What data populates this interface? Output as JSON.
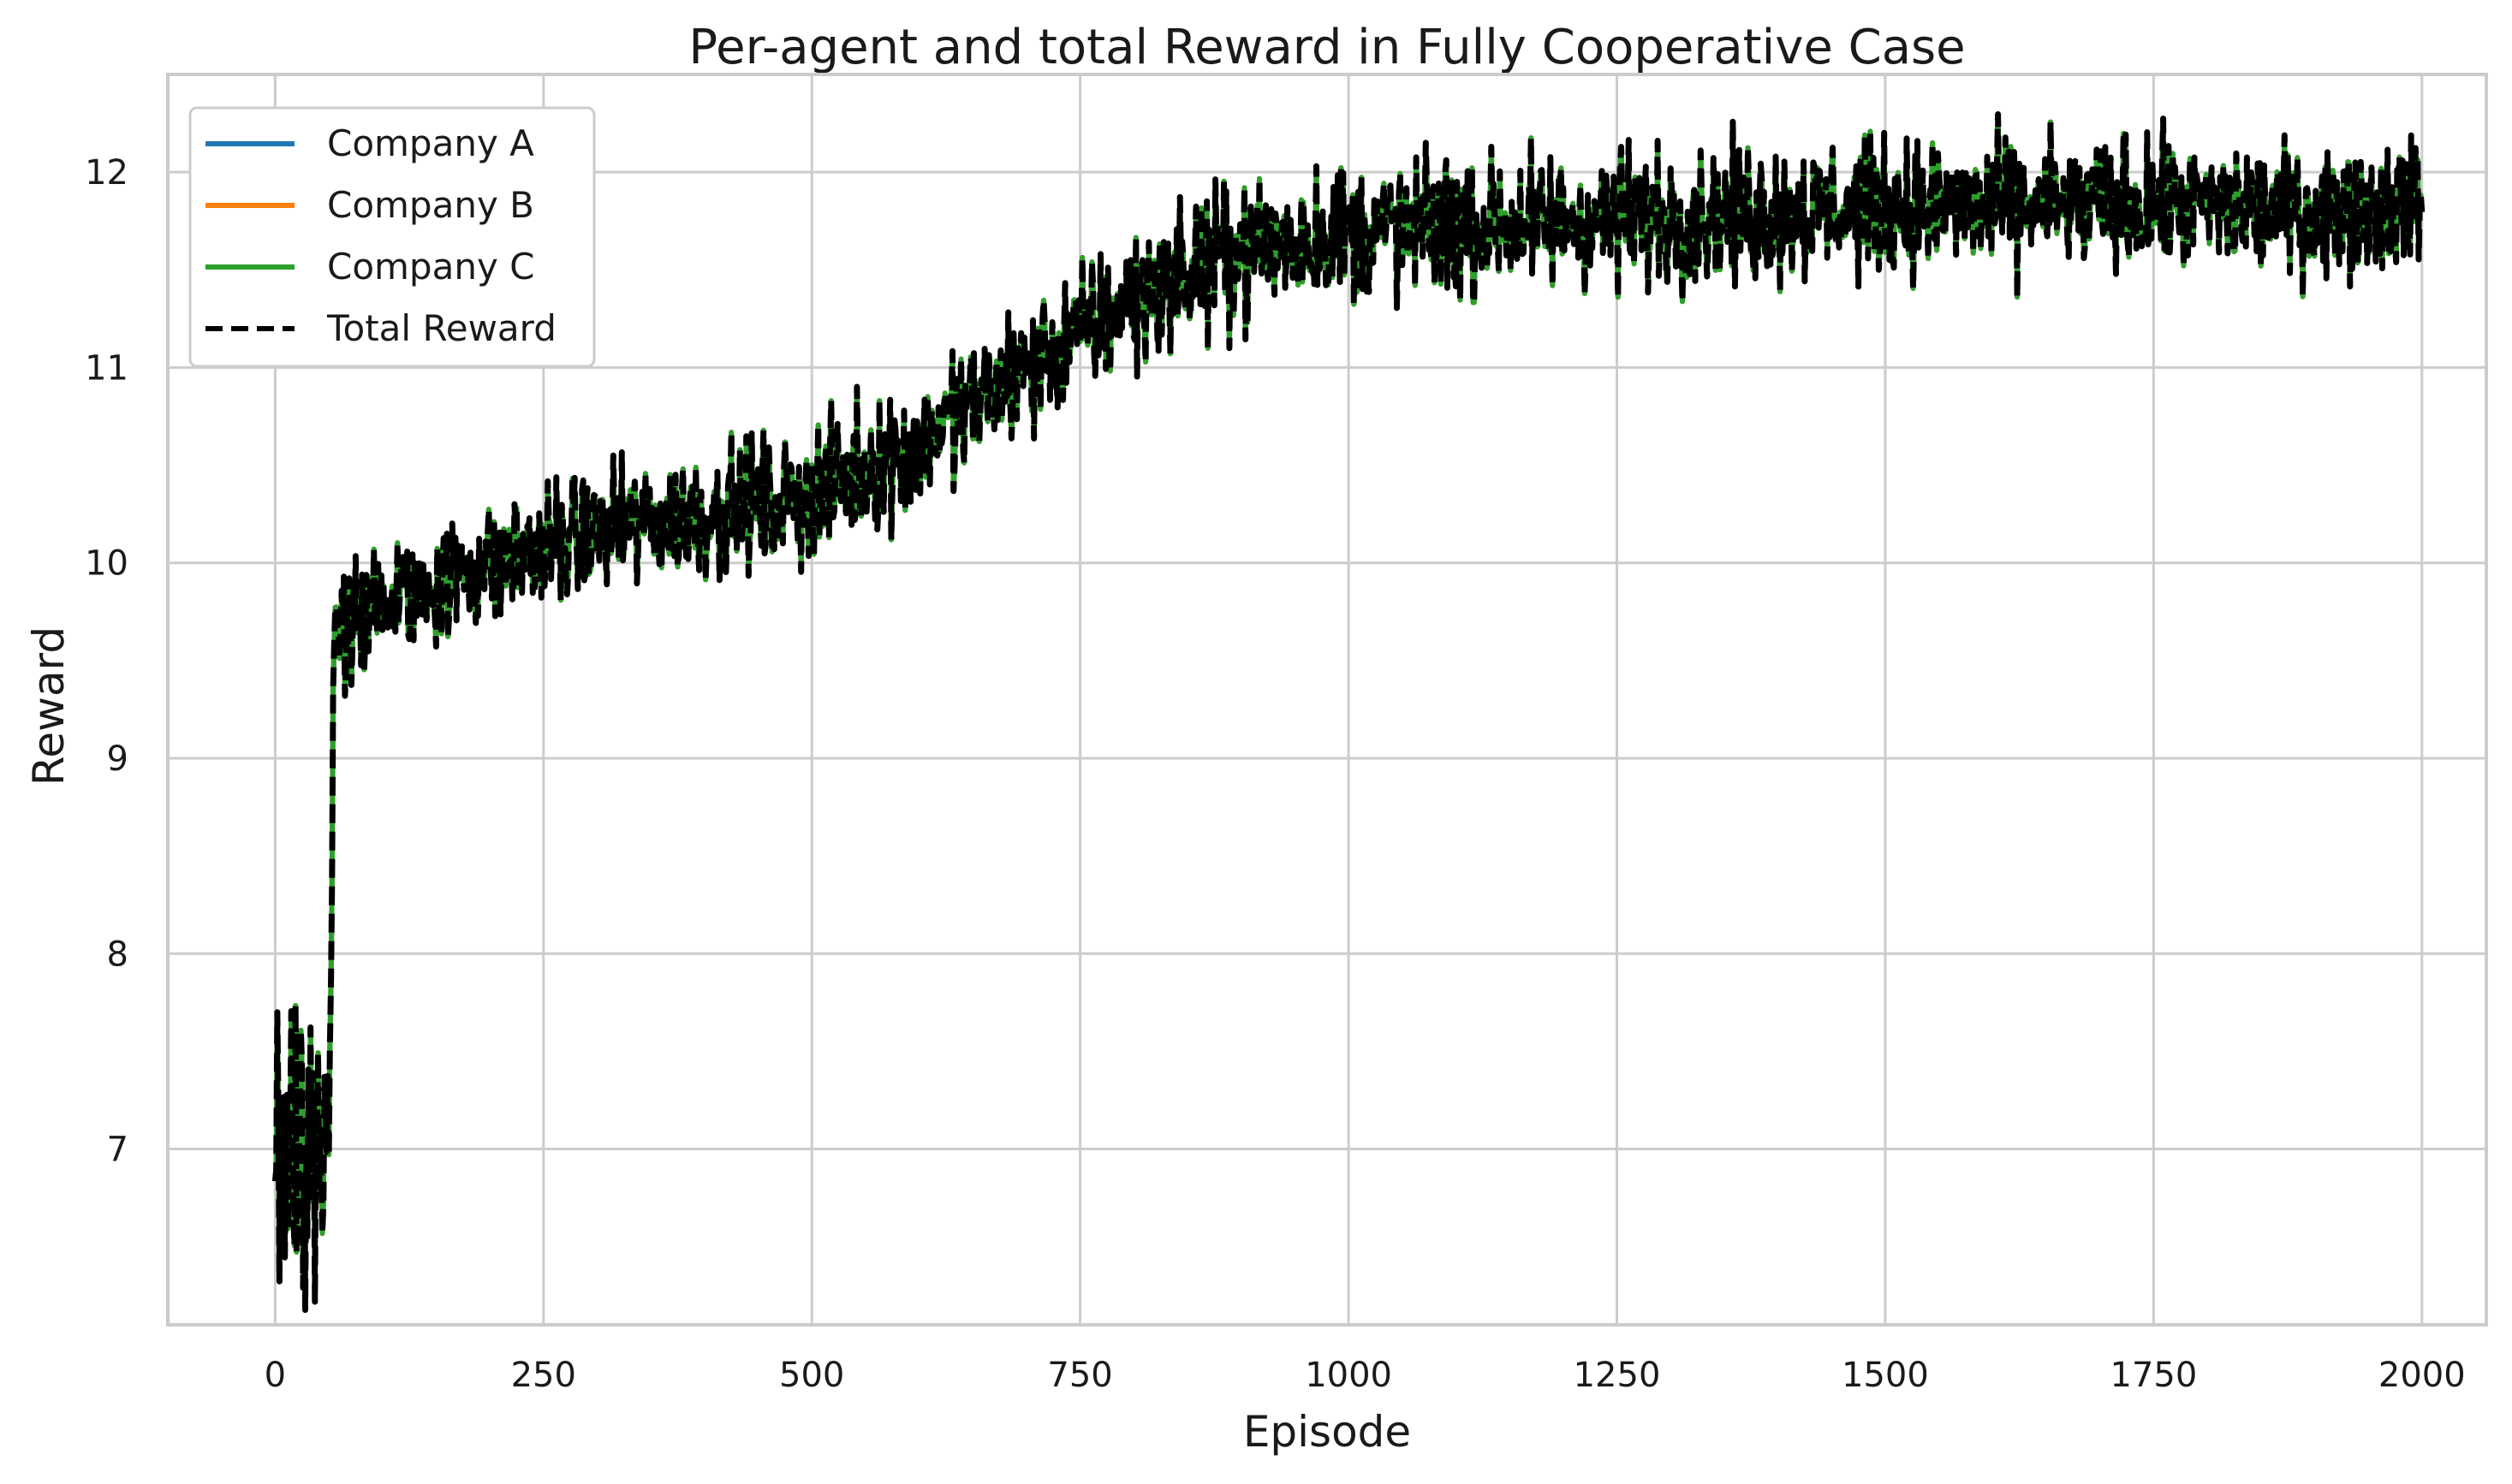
{
  "chart_data": {
    "type": "line",
    "title": "Per-agent and total Reward in Fully Cooperative Case",
    "xlabel": "Episode",
    "ylabel": "Reward",
    "xlim": [
      -100,
      2060
    ],
    "ylim": [
      6.1,
      12.5
    ],
    "xticks": [
      0,
      250,
      500,
      750,
      1000,
      1250,
      1500,
      1750,
      2000
    ],
    "yticks": [
      7,
      8,
      9,
      10,
      11,
      12
    ],
    "grid": true,
    "legend_position": "top-left",
    "series": [
      {
        "name": "Company A",
        "color": "#1f77b4",
        "style": "solid",
        "x": [
          0,
          50,
          55,
          100,
          200,
          300,
          400,
          500,
          600,
          700,
          800,
          900,
          1000,
          1100,
          1200,
          1300,
          1400,
          1500,
          1600,
          1700,
          1800,
          1900,
          2000
        ],
        "y": [
          7.1,
          7.0,
          9.6,
          9.8,
          10.0,
          10.15,
          10.25,
          10.35,
          10.6,
          11.0,
          11.35,
          11.6,
          11.7,
          11.72,
          11.75,
          11.78,
          11.8,
          11.82,
          11.82,
          11.83,
          11.82,
          11.8,
          11.85
        ]
      },
      {
        "name": "Company B",
        "color": "#ff7f0e",
        "style": "solid",
        "x": [
          0,
          50,
          55,
          100,
          200,
          300,
          400,
          500,
          600,
          700,
          800,
          900,
          1000,
          1100,
          1200,
          1300,
          1400,
          1500,
          1600,
          1700,
          1800,
          1900,
          2000
        ],
        "y": [
          7.1,
          7.0,
          9.6,
          9.8,
          10.0,
          10.15,
          10.25,
          10.35,
          10.6,
          11.0,
          11.35,
          11.6,
          11.7,
          11.72,
          11.75,
          11.78,
          11.8,
          11.82,
          11.82,
          11.83,
          11.82,
          11.8,
          11.85
        ]
      },
      {
        "name": "Company C",
        "color": "#2ca02c",
        "style": "solid",
        "x": [
          0,
          50,
          55,
          100,
          200,
          300,
          400,
          500,
          600,
          700,
          800,
          900,
          1000,
          1100,
          1200,
          1300,
          1400,
          1500,
          1600,
          1700,
          1800,
          1900,
          2000
        ],
        "y": [
          7.1,
          7.0,
          9.6,
          9.8,
          10.0,
          10.15,
          10.25,
          10.35,
          10.6,
          11.0,
          11.35,
          11.6,
          11.7,
          11.72,
          11.75,
          11.78,
          11.8,
          11.82,
          11.82,
          11.83,
          11.82,
          11.8,
          11.85
        ]
      },
      {
        "name": "Total Reward",
        "color": "#000000",
        "style": "dashed",
        "x": [
          0,
          50,
          55,
          100,
          200,
          300,
          400,
          500,
          600,
          700,
          800,
          900,
          1000,
          1100,
          1200,
          1300,
          1400,
          1500,
          1600,
          1700,
          1800,
          1900,
          2000
        ],
        "y": [
          7.1,
          7.0,
          9.6,
          9.8,
          10.0,
          10.15,
          10.25,
          10.35,
          10.6,
          11.0,
          11.35,
          11.6,
          11.7,
          11.72,
          11.75,
          11.78,
          11.8,
          11.82,
          11.82,
          11.83,
          11.82,
          11.8,
          11.85
        ]
      }
    ],
    "noise_amplitude": {
      "x": [
        0,
        50,
        55,
        1000,
        2000
      ],
      "y": [
        0.45,
        0.45,
        0.15,
        0.18,
        0.16
      ]
    }
  }
}
